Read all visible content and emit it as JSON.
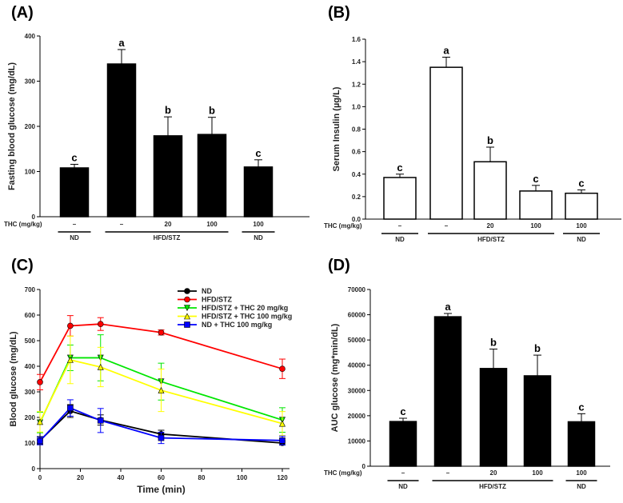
{
  "chart_data": [
    {
      "panel": "(A)",
      "type": "bar",
      "ylabel": "Fasting blood glucose (mg/dL)",
      "ylim": [
        0,
        400
      ],
      "yticks": [
        "0",
        "100",
        "200",
        "300",
        "400"
      ],
      "row_label": "THC (mg/kg)",
      "categories": [
        "–",
        "–",
        "20",
        "100",
        "100"
      ],
      "groups": [
        {
          "label": "ND",
          "span": [
            0,
            0
          ]
        },
        {
          "label": "HFD/STZ",
          "span": [
            1,
            3
          ]
        },
        {
          "label": "ND",
          "span": [
            4,
            4
          ]
        }
      ],
      "values": [
        108,
        338,
        179,
        182,
        110
      ],
      "errors": [
        8,
        32,
        42,
        38,
        16
      ],
      "letters": [
        "c",
        "a",
        "b",
        "b",
        "c"
      ],
      "bar_fill": "#000000"
    },
    {
      "panel": "(B)",
      "type": "bar",
      "ylabel": "Serum Insulin (µg/L)",
      "ylim": [
        0,
        1.6
      ],
      "yticks": [
        "0.0",
        "0.2",
        "0.4",
        "0.6",
        "0.8",
        "1.0",
        "1.2",
        "1.4",
        "1.6"
      ],
      "row_label": "THC (mg/kg)",
      "categories": [
        "–",
        "–",
        "20",
        "100",
        "100"
      ],
      "groups": [
        {
          "label": "ND",
          "span": [
            0,
            0
          ]
        },
        {
          "label": "HFD/STZ",
          "span": [
            1,
            3
          ]
        },
        {
          "label": "ND",
          "span": [
            4,
            4
          ]
        }
      ],
      "values": [
        0.37,
        1.35,
        0.51,
        0.25,
        0.23
      ],
      "errors": [
        0.03,
        0.09,
        0.13,
        0.05,
        0.03
      ],
      "letters": [
        "c",
        "a",
        "b",
        "c",
        "c"
      ],
      "bar_fill": "#ffffff"
    },
    {
      "panel": "(C)",
      "type": "line",
      "xlabel": "Time (min)",
      "ylabel": "Blood glucose (mg/dL)",
      "xlim": [
        0,
        120
      ],
      "ylim": [
        0,
        700
      ],
      "xticks": [
        "0",
        "20",
        "40",
        "60",
        "80",
        "100",
        "120"
      ],
      "yticks": [
        "0",
        "100",
        "200",
        "300",
        "400",
        "500",
        "600",
        "700"
      ],
      "legend_position": "top-right",
      "x": [
        0,
        15,
        30,
        60,
        120
      ],
      "series": [
        {
          "name": "ND",
          "color": "#000000",
          "marker": "circle",
          "values": [
            110,
            225,
            190,
            135,
            100
          ],
          "errors": [
            15,
            25,
            20,
            15,
            8
          ]
        },
        {
          "name": "HFD/STZ",
          "color": "#ff0000",
          "marker": "circle",
          "values": [
            338,
            558,
            565,
            532,
            390
          ],
          "errors": [
            30,
            40,
            25,
            10,
            38
          ]
        },
        {
          "name": "HFD/STZ + THC 20 mg/kg",
          "color": "#00e600",
          "marker": "triangle-down",
          "values": [
            180,
            433,
            433,
            340,
            190
          ],
          "errors": [
            40,
            50,
            90,
            72,
            48
          ]
        },
        {
          "name": "HFD/STZ + THC 100 mg/kg",
          "color": "#ffff00",
          "marker": "triangle-up",
          "values": [
            183,
            425,
            397,
            306,
            176
          ],
          "errors": [
            40,
            93,
            77,
            83,
            47
          ]
        },
        {
          "name": "ND + THC 100 mg/kg",
          "color": "#0000ff",
          "marker": "square",
          "values": [
            108,
            237,
            188,
            120,
            110
          ],
          "errors": [
            15,
            32,
            47,
            22,
            17
          ]
        }
      ]
    },
    {
      "panel": "(D)",
      "type": "bar",
      "ylabel": "AUC glucose (mg*min/dL)",
      "ylim": [
        0,
        70000
      ],
      "yticks": [
        "0",
        "10000",
        "20000",
        "30000",
        "40000",
        "50000",
        "60000",
        "70000"
      ],
      "row_label": "THC (mg/kg)",
      "categories": [
        "–",
        "–",
        "20",
        "100",
        "100"
      ],
      "groups": [
        {
          "label": "ND",
          "span": [
            0,
            0
          ]
        },
        {
          "label": "HFD/STZ",
          "span": [
            1,
            3
          ]
        },
        {
          "label": "ND",
          "span": [
            4,
            4
          ]
        }
      ],
      "values": [
        17700,
        59200,
        38700,
        35800,
        17600
      ],
      "errors": [
        1300,
        1300,
        7700,
        8200,
        3200
      ],
      "letters": [
        "c",
        "a",
        "b",
        "b",
        "c"
      ],
      "bar_fill": "#000000"
    }
  ]
}
